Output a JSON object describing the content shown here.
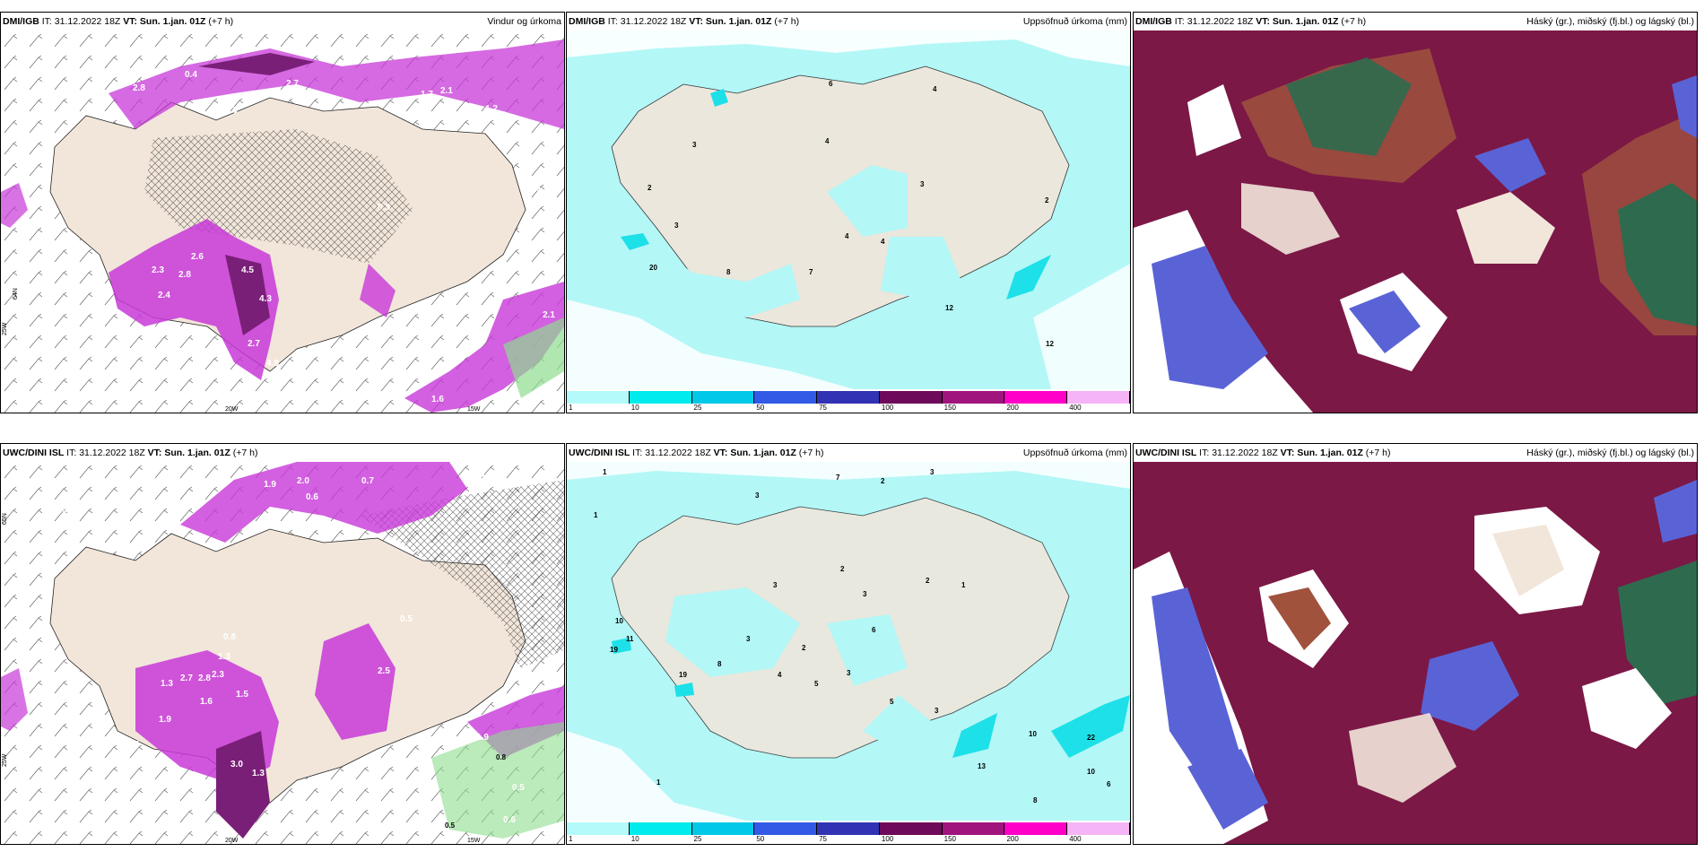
{
  "rows": [
    {
      "model": "DMI/IGB",
      "panels": [
        {
          "model": "DMI/IGB",
          "it_label": "IT:",
          "it_value": "31.12.2022 18Z",
          "vt_label": "VT: Sun. 1.jan. 01Z",
          "lead": "(+7 h)",
          "title": "Vindur og úrkoma",
          "labels": [
            "0.4",
            "2.8",
            "2.7",
            "1.7",
            "2.1",
            "2.0",
            "1.2",
            "0.4",
            "2.6",
            "2.3",
            "2.8",
            "2.4",
            "4.5",
            "4.3",
            "1.4",
            "2.7",
            "4.8",
            "2.1",
            "1.6",
            "0.3"
          ],
          "axis": {
            "lat": "64N",
            "lon_left": "25W",
            "lon_mid": "20W",
            "lon_right": "15W"
          }
        },
        {
          "model": "DMI/IGB",
          "it_label": "IT:",
          "it_value": "31.12.2022 18Z",
          "vt_label": "VT: Sun. 1.jan. 01Z",
          "lead": "(+7 h)",
          "title": "Uppsöfnuð úrkoma (mm)",
          "labels": [
            "6",
            "4",
            "4",
            "3",
            "2",
            "2",
            "20",
            "8",
            "7",
            "4",
            "4",
            "3",
            "3",
            "12",
            "12"
          ]
        },
        {
          "model": "DMI/IGB",
          "it_label": "IT:",
          "it_value": "31.12.2022 18Z",
          "vt_label": "VT: Sun. 1.jan. 01Z",
          "lead": "(+7 h)",
          "title": "Háský (gr.), miðský (fj.bl.) og lágský (bl.)"
        }
      ]
    },
    {
      "model": "UWC/DINI ISL",
      "panels": [
        {
          "model": "UWC/DINI ISL",
          "it_label": "IT:",
          "it_value": "31.12.2022 18Z",
          "vt_label": "VT: Sun. 1.jan. 01Z",
          "lead": "(+7 h)",
          "title": "Vindur og úrkoma",
          "labels": [
            "0.4",
            "1.9",
            "2.0",
            "0.6",
            "0.7",
            "0.5",
            "0.3",
            "1.3",
            "0.8",
            "1.3",
            "2.7",
            "2.8",
            "2.3",
            "1.6",
            "1.9",
            "1.5",
            "0.5",
            "3.0",
            "1.3",
            "2.5",
            "1.9",
            "0.8",
            "0.5",
            "0.6",
            "0.5"
          ],
          "axis": {
            "lat": "65N",
            "lon_left": "25W",
            "lon_mid": "20W",
            "lon_right": "15W"
          }
        },
        {
          "model": "UWC/DINI ISL",
          "it_label": "IT:",
          "it_value": "31.12.2022 18Z",
          "vt_label": "VT: Sun. 1.jan. 01Z",
          "lead": "(+7 h)",
          "title": "Uppsöfnuð úrkoma (mm)",
          "labels": [
            "1",
            "3",
            "2",
            "7",
            "3",
            "1",
            "2",
            "2",
            "3",
            "3",
            "10",
            "11",
            "19",
            "19",
            "8",
            "3",
            "2",
            "4",
            "5",
            "3",
            "6",
            "1",
            "3",
            "5",
            "10",
            "22",
            "10",
            "13",
            "6",
            "1",
            "8"
          ]
        },
        {
          "model": "UWC/DINI ISL",
          "it_label": "IT:",
          "it_value": "31.12.2022 18Z",
          "vt_label": "VT: Sun. 1.jan. 01Z",
          "lead": "(+7 h)",
          "title": "Háský (gr.), miðský (fj.bl.) og lágský (bl.)"
        }
      ]
    }
  ],
  "colorbar": {
    "ticks": [
      "1",
      "10",
      "25",
      "50",
      "75",
      "100",
      "150",
      "200",
      "400"
    ],
    "colors": [
      "#b4fafa",
      "#00ebeb",
      "#00c8e6",
      "#325ae6",
      "#3232b4",
      "#6e0a5a",
      "#a0147d",
      "#ff00c8",
      "#f5b4f5"
    ]
  },
  "colors": {
    "land": "#f2e6da",
    "precip_light": "#b3f7f7",
    "precip_med": "#1ee0e8",
    "wind_precip": "#c838d8",
    "wind_precip_dark": "#7a1f78",
    "cloud_high": "#2e6b4e",
    "cloud_mid": "#7b1846",
    "cloud_low": "#5a63d6",
    "cloud_brown": "#a0523d"
  }
}
